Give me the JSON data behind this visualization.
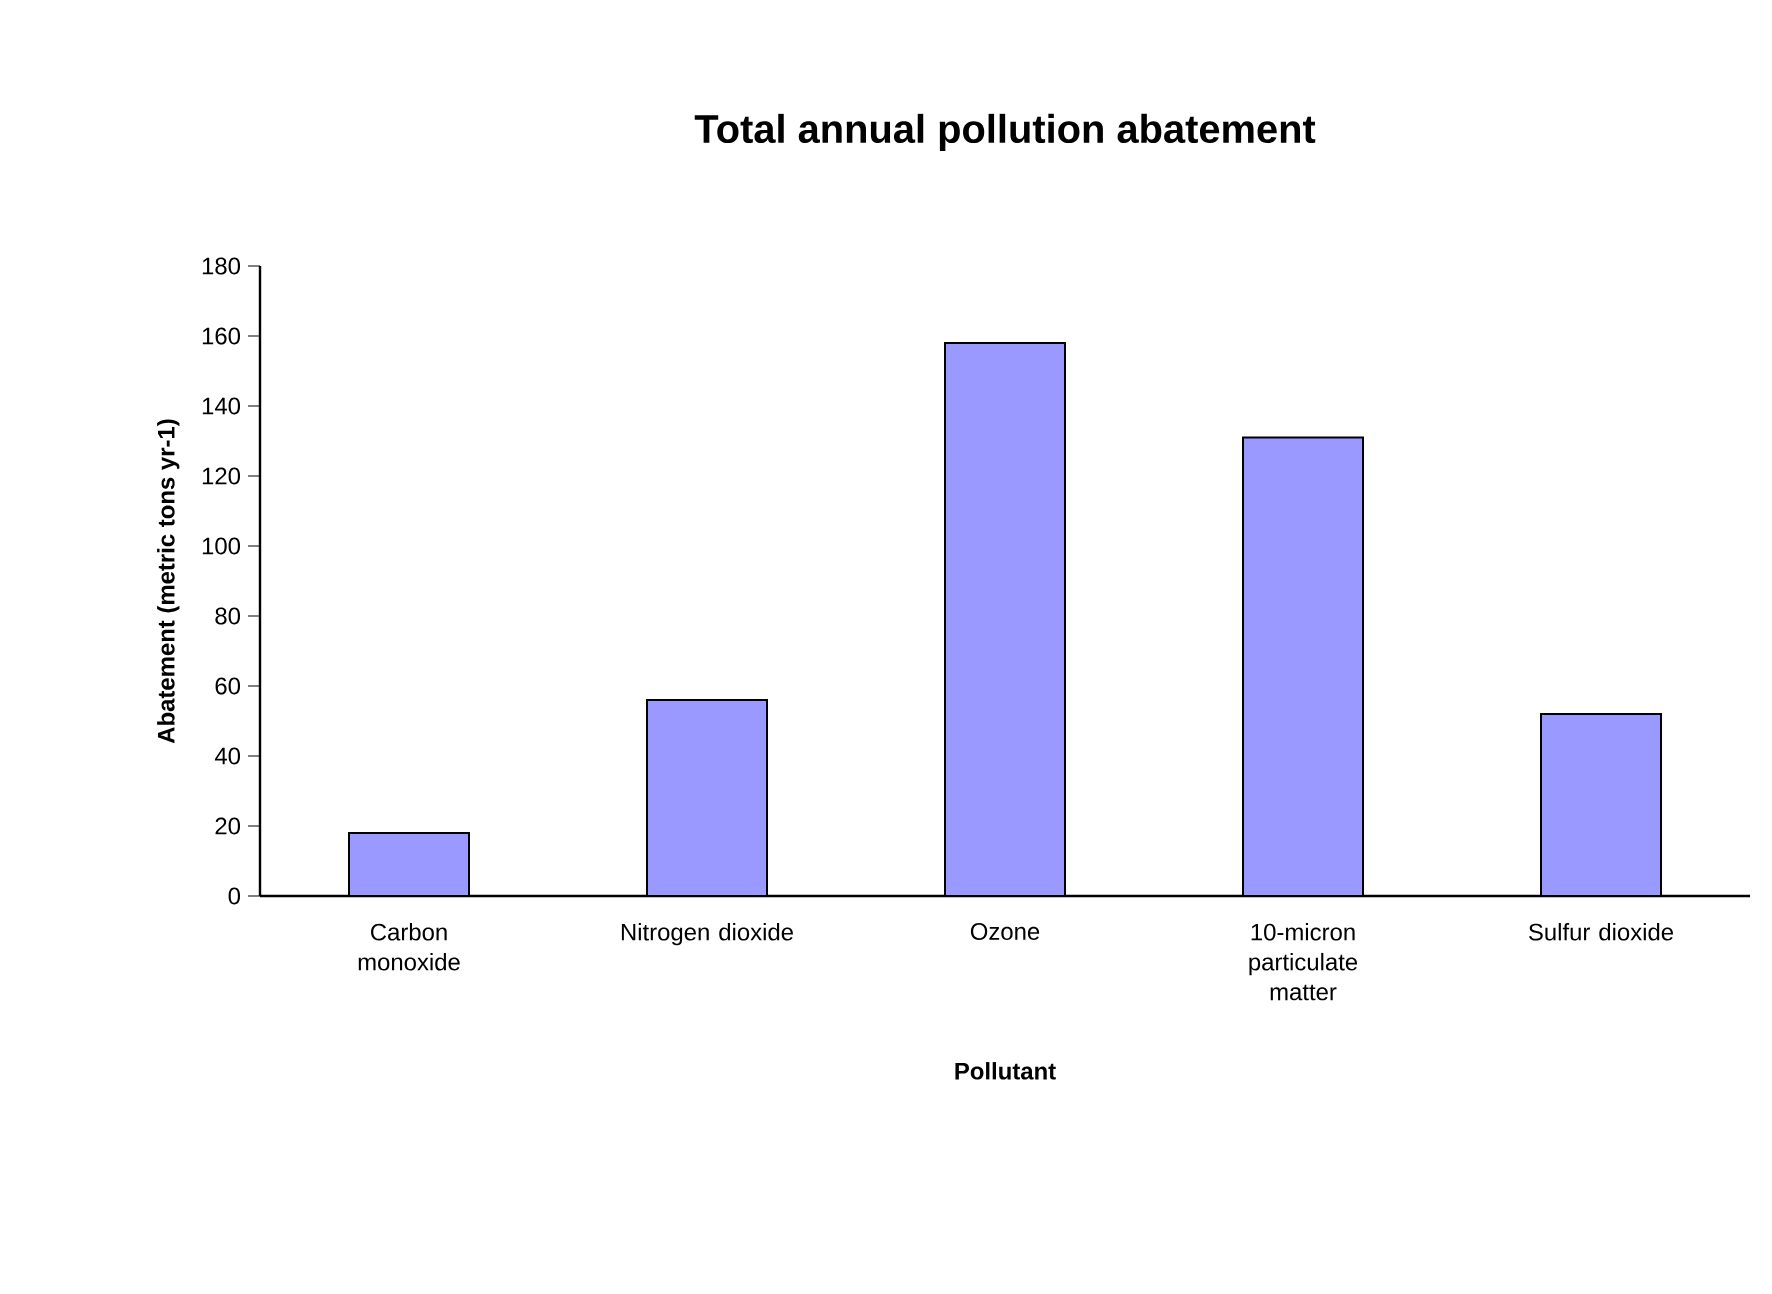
{
  "chart_data": {
    "type": "bar",
    "title": "Total annual pollution abatement",
    "xlabel": "Pollutant",
    "ylabel": "Abatement (metric tons yr-1)",
    "categories": [
      "Carbon monoxide",
      "Nitrogen dioxide",
      "Ozone",
      "10-micron particulate matter",
      "Sulfur dioxide"
    ],
    "values": [
      18,
      56,
      158,
      131,
      52
    ],
    "color": "#9999ff",
    "ylim": [
      0,
      180
    ],
    "yticks": [
      0,
      20,
      40,
      60,
      80,
      100,
      120,
      140,
      160,
      180
    ],
    "grid": false
  }
}
